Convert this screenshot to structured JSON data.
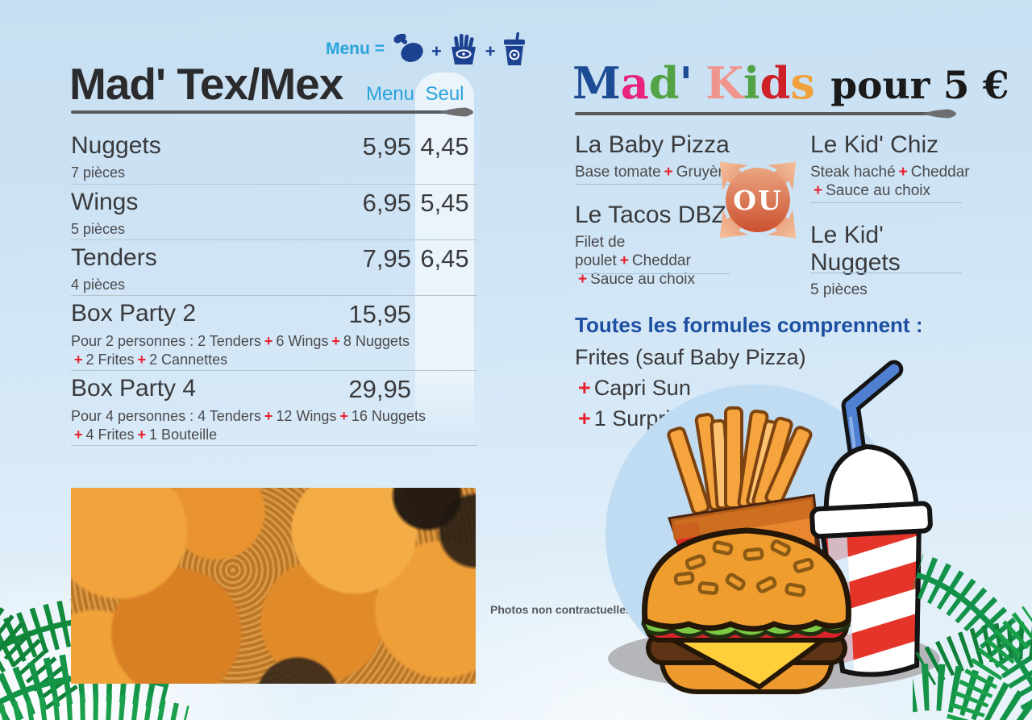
{
  "colors": {
    "accent_blue": "#2aa3dd",
    "icon_navy": "#1c4191",
    "plus_red": "#e8202d",
    "heading_navy": "#1c4fa1",
    "text_dark": "#3a3a3c",
    "palm_green": "#169245",
    "rule_gray": "#58595b"
  },
  "left_page": {
    "menu_formula_label": "Menu =",
    "menu_formula_plus": "+",
    "menu_formula_icons": [
      "drumstick-icon",
      "fries-icon",
      "drink-icon"
    ],
    "title": "Mad' Tex/Mex",
    "col_menu": "Menu",
    "col_seul": "Seul",
    "items": [
      {
        "name": "Nuggets",
        "menu": "5,95",
        "seul": "4,45",
        "desc_lines": [
          [
            {
              "text": "7 pièces"
            }
          ]
        ]
      },
      {
        "name": "Wings",
        "menu": "6,95",
        "seul": "5,45",
        "desc_lines": [
          [
            {
              "text": "5 pièces"
            }
          ]
        ]
      },
      {
        "name": "Tenders",
        "menu": "7,95",
        "seul": "6,45",
        "desc_lines": [
          [
            {
              "text": "4 pièces"
            }
          ]
        ]
      },
      {
        "name": "Box Party 2",
        "menu": "15,95",
        "seul": "",
        "desc_lines": [
          [
            {
              "text": "Pour 2 personnes : 2 Tenders"
            },
            {
              "text": "+",
              "plus": true
            },
            {
              "text": "6 Wings"
            },
            {
              "text": "+",
              "plus": true
            },
            {
              "text": "8 Nuggets"
            }
          ],
          [
            {
              "text": "+",
              "plus": true
            },
            {
              "text": "2 Frites"
            },
            {
              "text": "+",
              "plus": true
            },
            {
              "text": "2 Cannettes"
            }
          ]
        ]
      },
      {
        "name": "Box Party 4",
        "menu": "29,95",
        "seul": "",
        "desc_lines": [
          [
            {
              "text": "Pour 4 personnes : 4 Tenders"
            },
            {
              "text": "+",
              "plus": true
            },
            {
              "text": "12 Wings"
            },
            {
              "text": "+",
              "plus": true
            },
            {
              "text": "16 Nuggets"
            }
          ],
          [
            {
              "text": "+",
              "plus": true
            },
            {
              "text": "4 Frites"
            },
            {
              "text": "+",
              "plus": true
            },
            {
              "text": "1 Bouteille"
            }
          ]
        ]
      }
    ],
    "photo_note": "Photos non contractuelles"
  },
  "right_page": {
    "title_letters": [
      {
        "ch": "M",
        "color": "#1d4b94"
      },
      {
        "ch": "a",
        "color": "#e8247f"
      },
      {
        "ch": "d",
        "color": "#52a345"
      },
      {
        "ch": "'",
        "color": "#1d4b94"
      },
      {
        "ch": "K",
        "color": "#f0958d"
      },
      {
        "ch": "i",
        "color": "#52a345"
      },
      {
        "ch": "d",
        "color": "#cf2027"
      },
      {
        "ch": "s",
        "color": "#f0a13c"
      }
    ],
    "title_suffix": "pour 5 €",
    "or_label": "OU",
    "col_left": [
      {
        "name": "La Baby Pizza",
        "desc_lines": [
          [
            {
              "text": "Base tomate"
            },
            {
              "text": "+",
              "plus": true
            },
            {
              "text": "Gruyère"
            }
          ]
        ]
      },
      {
        "name": "Le Tacos DBZ",
        "desc_lines": [
          [
            {
              "text": "Filet de poulet"
            },
            {
              "text": "+",
              "plus": true
            },
            {
              "text": "Cheddar"
            }
          ],
          [
            {
              "text": "+",
              "plus": true
            },
            {
              "text": "Sauce au choix"
            }
          ]
        ]
      }
    ],
    "col_right": [
      {
        "name": "Le Kid' Chiz",
        "desc_lines": [
          [
            {
              "text": "Steak haché"
            },
            {
              "text": "+",
              "plus": true
            },
            {
              "text": "Cheddar"
            }
          ],
          [
            {
              "text": "+",
              "plus": true
            },
            {
              "text": "Sauce au choix"
            }
          ]
        ]
      },
      {
        "name": "Le Kid' Nuggets",
        "desc_lines": [
          [
            {
              "text": "5 pièces"
            }
          ]
        ]
      }
    ],
    "formules": {
      "heading": "Toutes les formules comprennent :",
      "lines": [
        [
          {
            "text": "Frites (sauf Baby Pizza)"
          }
        ],
        [
          {
            "text": "+",
            "plus": true
          },
          {
            "text": "Capri Sun"
          }
        ],
        [
          {
            "text": "+",
            "plus": true
          },
          {
            "text": "1 Surprise"
          }
        ]
      ]
    }
  }
}
